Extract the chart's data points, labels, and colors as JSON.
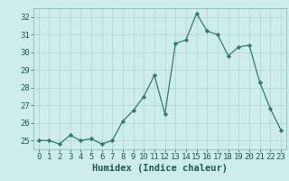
{
  "x": [
    0,
    1,
    2,
    3,
    4,
    5,
    6,
    7,
    8,
    9,
    10,
    11,
    12,
    13,
    14,
    15,
    16,
    17,
    18,
    19,
    20,
    21,
    22,
    23
  ],
  "y": [
    25.0,
    25.0,
    24.8,
    25.3,
    25.0,
    25.1,
    24.8,
    25.0,
    26.1,
    26.7,
    27.5,
    28.7,
    26.5,
    30.5,
    30.7,
    32.2,
    31.2,
    31.0,
    29.8,
    30.3,
    30.4,
    28.3,
    26.8,
    25.6
  ],
  "line_color": "#2e7d6e",
  "marker": "D",
  "marker_size": 2.2,
  "bg_color": "#cdecea",
  "grid_color": "#aed4d0",
  "xlabel": "Humidex (Indice chaleur)",
  "ylim": [
    24.5,
    32.5
  ],
  "xlim": [
    -0.5,
    23.5
  ],
  "yticks": [
    25,
    26,
    27,
    28,
    29,
    30,
    31,
    32
  ],
  "xticks": [
    0,
    1,
    2,
    3,
    4,
    5,
    6,
    7,
    8,
    9,
    10,
    11,
    12,
    13,
    14,
    15,
    16,
    17,
    18,
    19,
    20,
    21,
    22,
    23
  ],
  "tick_fontsize": 6.5,
  "xlabel_fontsize": 7.5
}
